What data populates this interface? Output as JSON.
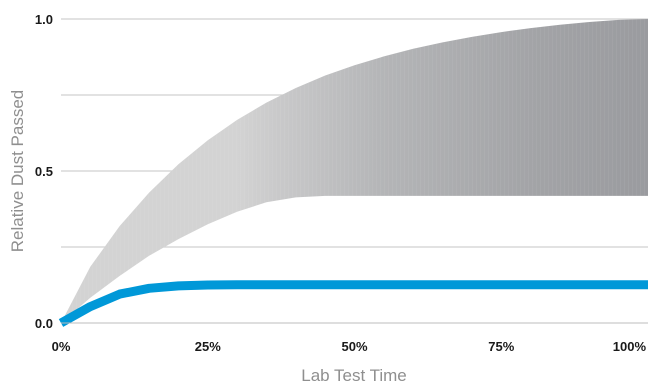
{
  "chart_data": {
    "type": "area",
    "title": "",
    "xlabel": "Lab Test Time",
    "ylabel": "Relative Dust Passed",
    "x_ticks": [
      "0%",
      "25%",
      "50%",
      "75%",
      "100%"
    ],
    "y_ticks": [
      "0.0",
      "0.5",
      "1.0"
    ],
    "xlim": [
      0,
      100
    ],
    "ylim": [
      0,
      1.0
    ],
    "grid": "horizontal",
    "colors": {
      "band_light": "#d3d3d3",
      "band_dark": "#9a9b9f",
      "line": "#0098d8",
      "grid": "#d0d0d0",
      "axis_text": "#1a1a1a",
      "axis_title": "#8f8f8f"
    },
    "series": [
      {
        "kind": "band",
        "x": [
          0,
          5,
          10,
          15,
          20,
          25,
          30,
          35,
          40,
          45,
          50,
          55,
          60,
          65,
          70,
          75,
          80,
          85,
          90,
          95,
          100
        ],
        "upper": [
          0,
          0.185,
          0.319,
          0.429,
          0.522,
          0.601,
          0.668,
          0.725,
          0.773,
          0.814,
          0.848,
          0.877,
          0.902,
          0.923,
          0.941,
          0.957,
          0.97,
          0.981,
          0.99,
          0.997,
          1.0
        ],
        "lower": [
          0,
          0.083,
          0.155,
          0.221,
          0.276,
          0.325,
          0.366,
          0.397,
          0.413,
          0.418,
          0.418,
          0.418,
          0.418,
          0.418,
          0.418,
          0.418,
          0.418,
          0.418,
          0.418,
          0.418,
          0.418
        ]
      },
      {
        "kind": "line",
        "x": [
          0,
          5,
          10,
          15,
          20,
          25,
          30,
          35,
          40,
          45,
          50,
          55,
          60,
          65,
          70,
          75,
          80,
          85,
          90,
          95,
          100
        ],
        "y": [
          0,
          0.054,
          0.095,
          0.114,
          0.122,
          0.125,
          0.126,
          0.126,
          0.126,
          0.126,
          0.126,
          0.126,
          0.126,
          0.126,
          0.126,
          0.126,
          0.126,
          0.126,
          0.126,
          0.126,
          0.126
        ]
      }
    ]
  }
}
